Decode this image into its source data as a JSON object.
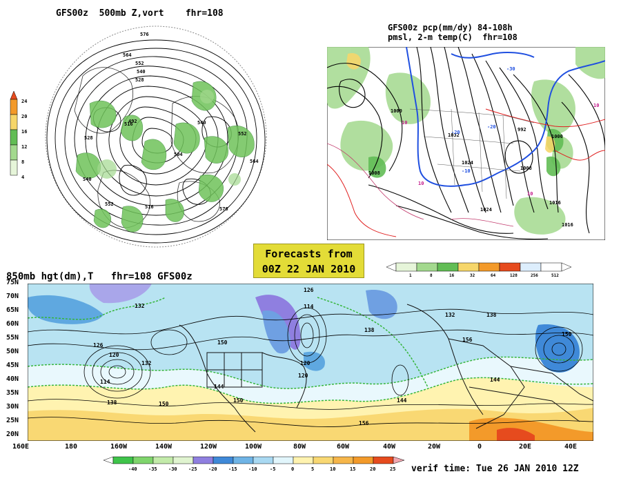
{
  "polar_panel": {
    "title": "GFS00z  500mb Z,vort    fhr=108",
    "colorbar_labels": [
      "24",
      "20",
      "16",
      "12",
      "8",
      "4"
    ],
    "contour_labels": [
      "576",
      "564",
      "552",
      "540",
      "528",
      "516",
      "504",
      "492",
      "540",
      "552",
      "564",
      "576",
      "528",
      "516",
      "552",
      "540"
    ]
  },
  "precip_panel": {
    "title_line1": "GFS00z pcp(mm/dy) 84-108h",
    "title_line2": "pmsl, 2-m temp(C)  fhr=108",
    "contour_labels": [
      "1000",
      "1032",
      "1024",
      "1008",
      "992",
      "1000",
      "1008",
      "1016",
      "1024",
      "1016",
      "-20",
      "-10",
      "10",
      "-30"
    ],
    "colorbar_labels": [
      "1",
      "8",
      "16",
      "32",
      "64",
      "128",
      "256",
      "512"
    ]
  },
  "forecast_box": {
    "line1": "Forecasts from",
    "line2": "00Z 22 JAN 2010"
  },
  "hemi_panel": {
    "title": "850mb hgt(dm),T   fhr=108 GFS00z",
    "lat_labels": [
      "75N",
      "70N",
      "65N",
      "60N",
      "55N",
      "50N",
      "45N",
      "40N",
      "35N",
      "30N",
      "25N",
      "20N"
    ],
    "lon_labels": [
      "160E",
      "180",
      "160W",
      "140W",
      "120W",
      "100W",
      "80W",
      "60W",
      "40W",
      "20W",
      "0",
      "20E",
      "40E"
    ],
    "contour_labels": [
      "132",
      "126",
      "120",
      "114",
      "150",
      "144",
      "138",
      "132",
      "126",
      "120",
      "138",
      "144",
      "150",
      "156",
      "150",
      "144",
      "132",
      "120",
      "114",
      "150",
      "156",
      "138"
    ],
    "colorbar_labels": [
      "-40",
      "-35",
      "-30",
      "-25",
      "-20",
      "-15",
      "-10",
      "-5",
      "0",
      "5",
      "10",
      "15",
      "20",
      "25"
    ]
  },
  "verif_time": "verif time: Tue 26 JAN 2010 12Z",
  "colors": {
    "forecast_box": "#e3dc37",
    "vort_green": "#6fc35a",
    "ocean_blue": "#9fd6ec"
  }
}
